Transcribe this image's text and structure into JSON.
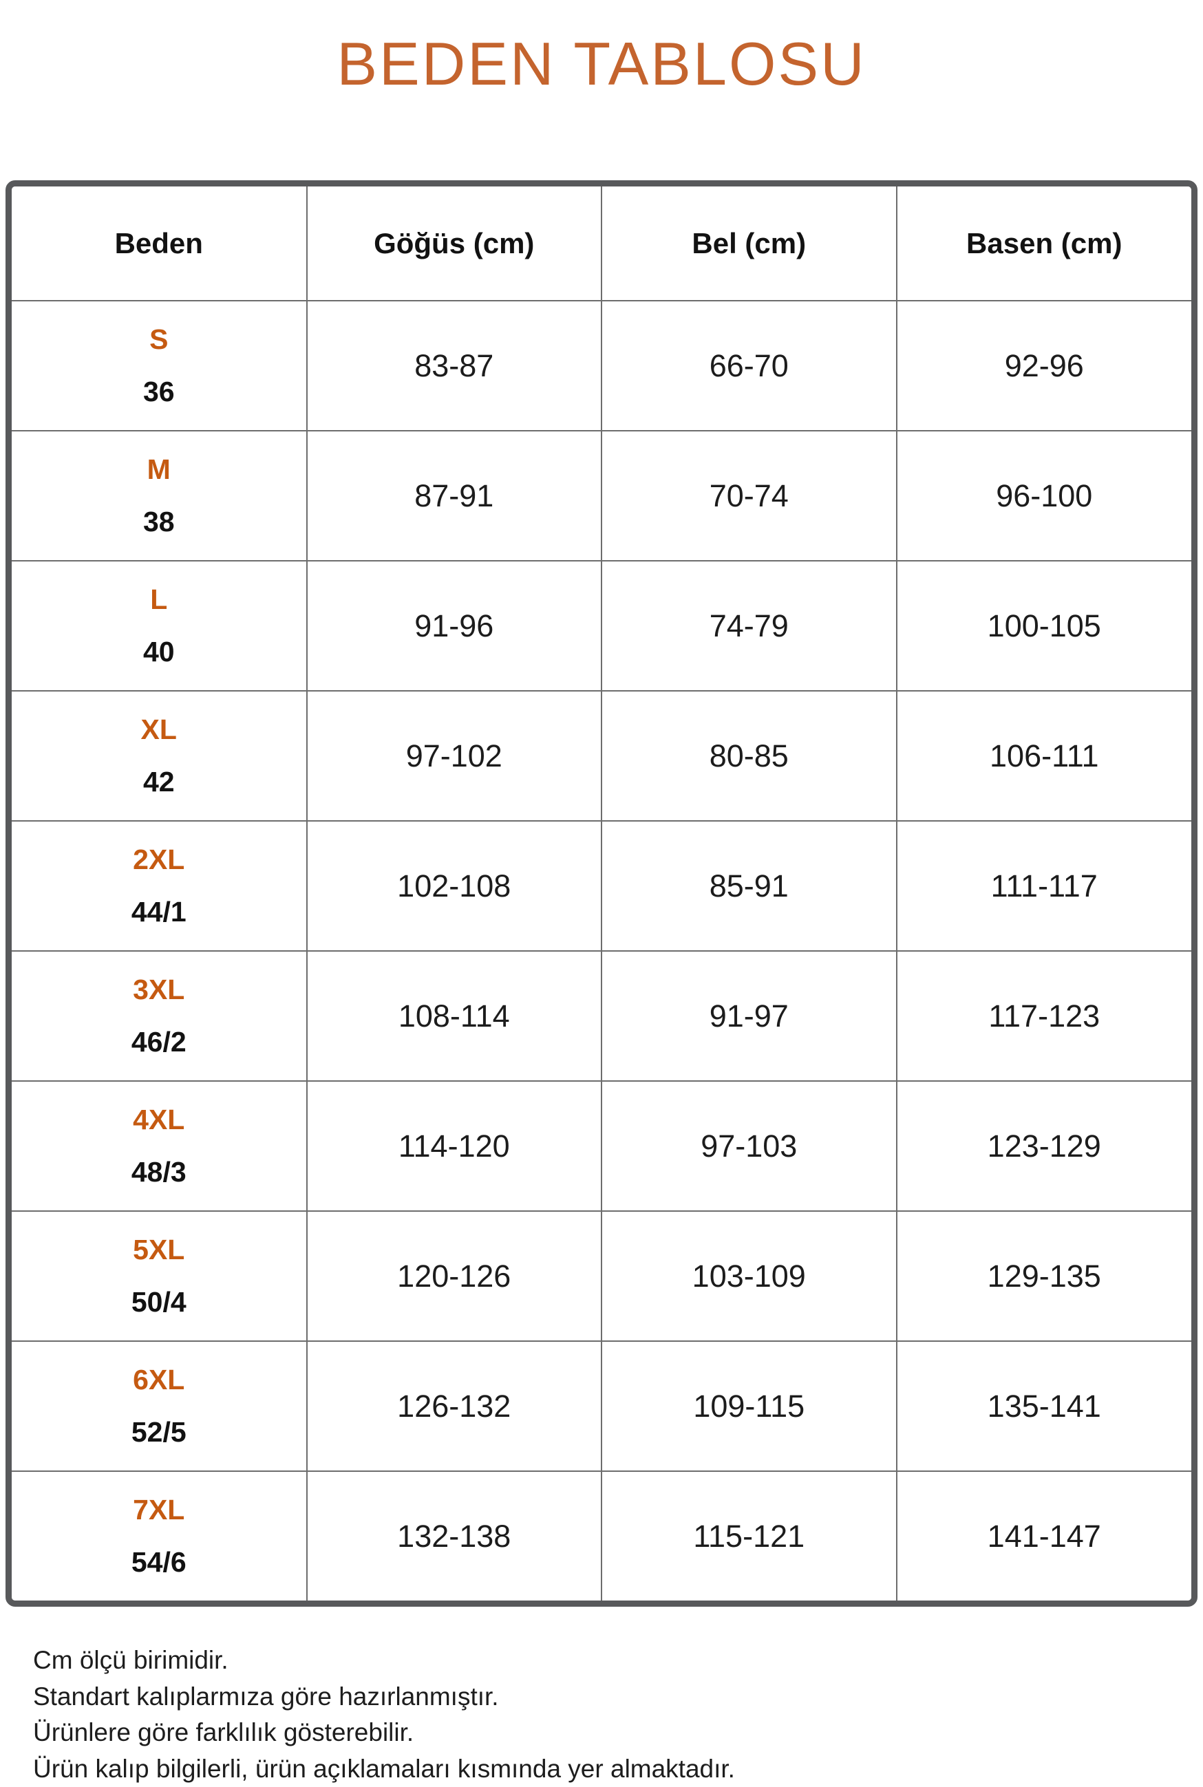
{
  "title": "BEDEN TABLOSU",
  "colors": {
    "title_orange": "#C4642E",
    "size_label_orange": "#C55A11",
    "outer_border_gray": "#58595B",
    "grid_line_gray": "#6D6D6D",
    "text_dark": "#1C1C1C"
  },
  "table": {
    "headers": [
      "Beden",
      "Göğüs (cm)",
      "Bel (cm)",
      "Basen (cm)"
    ],
    "rows": [
      {
        "size": "S",
        "num": "36",
        "chest": "83-87",
        "waist": "66-70",
        "hip": "92-96"
      },
      {
        "size": "M",
        "num": "38",
        "chest": "87-91",
        "waist": "70-74",
        "hip": "96-100"
      },
      {
        "size": "L",
        "num": "40",
        "chest": "91-96",
        "waist": "74-79",
        "hip": "100-105"
      },
      {
        "size": "XL",
        "num": "42",
        "chest": "97-102",
        "waist": "80-85",
        "hip": "106-111"
      },
      {
        "size": "2XL",
        "num": "44/1",
        "chest": "102-108",
        "waist": "85-91",
        "hip": "111-117"
      },
      {
        "size": "3XL",
        "num": "46/2",
        "chest": "108-114",
        "waist": "91-97",
        "hip": "117-123"
      },
      {
        "size": "4XL",
        "num": "48/3",
        "chest": "114-120",
        "waist": "97-103",
        "hip": "123-129"
      },
      {
        "size": "5XL",
        "num": "50/4",
        "chest": "120-126",
        "waist": "103-109",
        "hip": "129-135"
      },
      {
        "size": "6XL",
        "num": "52/5",
        "chest": "126-132",
        "waist": "109-115",
        "hip": "135-141"
      },
      {
        "size": "7XL",
        "num": "54/6",
        "chest": "132-138",
        "waist": "115-121",
        "hip": "141-147"
      }
    ]
  },
  "footer": {
    "lines": [
      "Cm ölçü birimidir.",
      "Standart kalıplarmıza göre hazırlanmıştır.",
      "Ürünlere göre farklılık gösterebilir.",
      "Ürün kalıp bilgilerli, ürün açıklamaları kısmında yer almaktadır."
    ]
  }
}
